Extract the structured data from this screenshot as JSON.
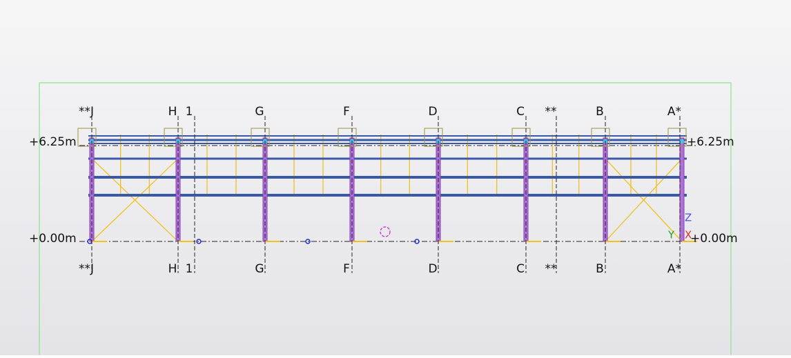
{
  "levels": [
    {
      "label": "+6.25m"
    },
    {
      "label": "+0.00m"
    }
  ],
  "gridlines": [
    {
      "label": "**J"
    },
    {
      "label": "H"
    },
    {
      "label": "1"
    },
    {
      "label": "G"
    },
    {
      "label": "F"
    },
    {
      "label": "D"
    },
    {
      "label": "C"
    },
    {
      "label": "**"
    },
    {
      "label": "B"
    },
    {
      "label": "A*"
    }
  ],
  "axes": {
    "z": "Z",
    "y": "Y",
    "x": "X"
  }
}
